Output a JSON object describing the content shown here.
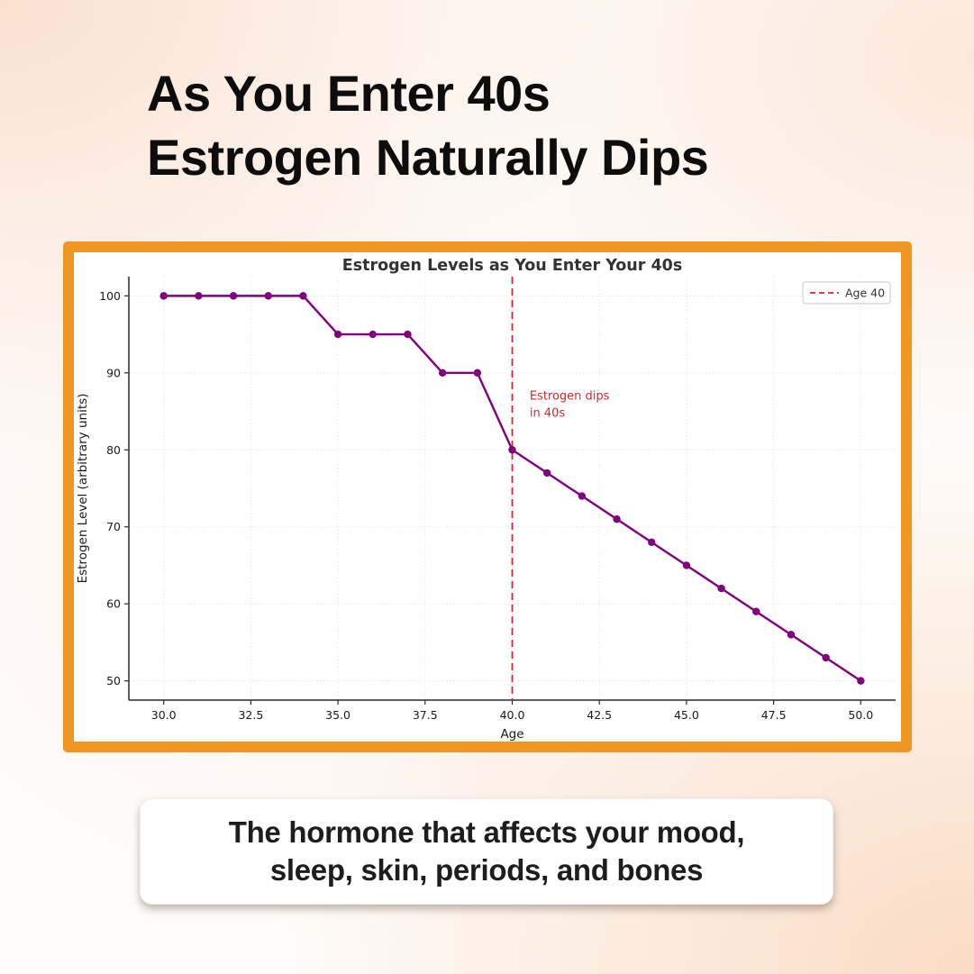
{
  "header": {
    "line1": "As You Enter 40s",
    "line2": "Estrogen Naturally Dips"
  },
  "caption": {
    "line1": "The hormone that affects your mood,",
    "line2": "sleep, skin, periods, and bones"
  },
  "colors": {
    "accent_orange": "#EF9722",
    "line_purple": "#800080",
    "alert_red": "#D92828",
    "axis_dark": "#2a2a2a",
    "grid_gray": "#d9d9d9",
    "tick_text": "#1a1a1a",
    "title_text": "#333333"
  },
  "chart_data": {
    "type": "line",
    "title": "Estrogen Levels as You Enter Your 40s",
    "xlabel": "Age",
    "ylabel": "Estrogen Level (arbitrary units)",
    "x": [
      30,
      31,
      32,
      33,
      34,
      35,
      36,
      37,
      38,
      39,
      40,
      41,
      42,
      43,
      44,
      45,
      46,
      47,
      48,
      49,
      50
    ],
    "series": [
      {
        "name": "Estrogen Level",
        "values": [
          100,
          100,
          100,
          100,
          100,
          95,
          95,
          95,
          90,
          90,
          80,
          77,
          74,
          71,
          68,
          65,
          62,
          59,
          56,
          53,
          50
        ],
        "color": "#800080"
      }
    ],
    "xlim": [
      29,
      51
    ],
    "ylim": [
      47.5,
      102.5
    ],
    "xticks": {
      "values": [
        30,
        32.5,
        35,
        37.5,
        40,
        42.5,
        45,
        47.5,
        50
      ],
      "labels": [
        "30.0",
        "32.5",
        "35.0",
        "37.5",
        "40.0",
        "42.5",
        "45.0",
        "47.5",
        "50.0"
      ]
    },
    "yticks": {
      "values": [
        50,
        60,
        70,
        80,
        90,
        100
      ],
      "labels": [
        "50",
        "60",
        "70",
        "80",
        "90",
        "100"
      ]
    },
    "grid": true,
    "vline": {
      "x": 40,
      "color": "#D92828",
      "style": "dashed",
      "label": "Age 40"
    },
    "annotation": {
      "lines": [
        "Estrogen dips",
        "in 40s"
      ],
      "x": 40.5,
      "y": 86.5,
      "color": "#D92828"
    },
    "legend": {
      "position": "upper right",
      "entries": [
        {
          "label": "Age 40",
          "color": "#D92828",
          "dashed": true
        }
      ]
    }
  }
}
